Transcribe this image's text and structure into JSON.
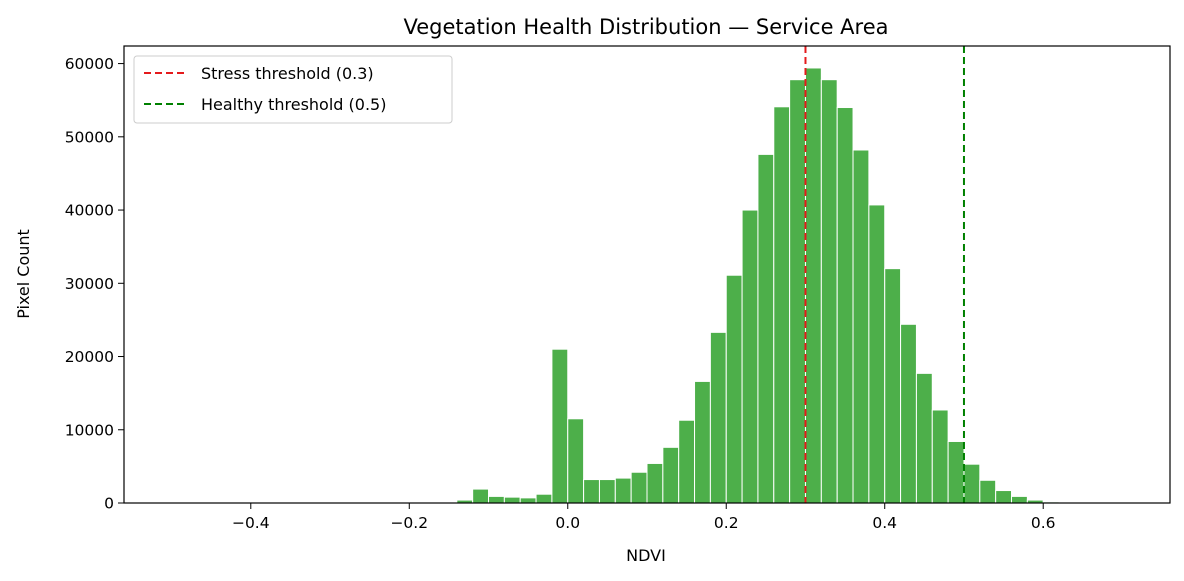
{
  "chart_data": {
    "type": "bar",
    "title": "Vegetation Health Distribution — Service Area",
    "xlabel": "NDVI",
    "ylabel": "Pixel Count",
    "xlim": [
      -0.56,
      0.76
    ],
    "ylim": [
      0,
      62400
    ],
    "bin_width": 0.02,
    "bin_starts": [
      -0.14,
      -0.12,
      -0.1,
      -0.08,
      -0.06,
      -0.04,
      -0.02,
      0.0,
      0.02,
      0.04,
      0.06,
      0.08,
      0.1,
      0.12,
      0.14,
      0.16,
      0.18,
      0.2,
      0.22,
      0.24,
      0.26,
      0.28,
      0.3,
      0.32,
      0.34,
      0.36,
      0.38,
      0.4,
      0.42,
      0.44,
      0.46,
      0.48,
      0.5,
      0.52,
      0.54,
      0.56,
      0.58,
      0.6,
      0.62
    ],
    "values": [
      400,
      1900,
      900,
      800,
      700,
      1200,
      21000,
      11500,
      3200,
      3200,
      3400,
      4200,
      5400,
      7600,
      11300,
      16600,
      23300,
      31100,
      40000,
      47600,
      54100,
      57800,
      59400,
      57800,
      54000,
      48200,
      40700,
      32000,
      24400,
      17700,
      12700,
      8400,
      5300,
      3100,
      1700,
      900,
      400,
      150,
      50
    ],
    "bar_color": "#4daf4a",
    "xticks": [
      -0.4,
      -0.2,
      0.0,
      0.2,
      0.4,
      0.6
    ],
    "xtick_labels": [
      "−0.4",
      "−0.2",
      "0.0",
      "0.2",
      "0.4",
      "0.6"
    ],
    "yticks": [
      0,
      10000,
      20000,
      30000,
      40000,
      50000,
      60000
    ],
    "ytick_labels": [
      "0",
      "10000",
      "20000",
      "30000",
      "40000",
      "50000",
      "60000"
    ],
    "grid": false,
    "legend_position": "top-left",
    "thresholds": [
      {
        "label": "Stress threshold (0.3)",
        "x": 0.3,
        "color": "#e41a1c"
      },
      {
        "label": "Healthy threshold (0.5)",
        "x": 0.5,
        "color": "#008000"
      }
    ]
  }
}
